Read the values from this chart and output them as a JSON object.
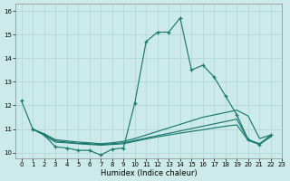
{
  "xlabel": "Humidex (Indice chaleur)",
  "background_color": "#cdeaea",
  "grid_color": "#aed4d4",
  "line_color": "#1a7a6e",
  "xlim": [
    -0.5,
    23
  ],
  "ylim": [
    9.75,
    16.3
  ],
  "yticks": [
    10,
    11,
    12,
    13,
    14,
    15,
    16
  ],
  "xticks": [
    0,
    1,
    2,
    3,
    4,
    5,
    6,
    7,
    8,
    9,
    10,
    11,
    12,
    13,
    14,
    15,
    16,
    17,
    18,
    19,
    20,
    21,
    22,
    23
  ],
  "line1": {
    "x": [
      0,
      1,
      2,
      3,
      4,
      5,
      6,
      7,
      8,
      9,
      10,
      11,
      12,
      13,
      14,
      15,
      16,
      17,
      18,
      19,
      20,
      21,
      22
    ],
    "y": [
      12.2,
      11.0,
      10.75,
      10.25,
      10.2,
      10.1,
      10.1,
      9.9,
      10.15,
      10.2,
      12.1,
      14.7,
      15.1,
      15.1,
      15.7,
      13.5,
      13.7,
      13.2,
      12.4,
      11.6,
      10.55,
      10.35,
      10.75
    ]
  },
  "line2": {
    "x": [
      1,
      2,
      3,
      4,
      5,
      6,
      7,
      8,
      9,
      10,
      11,
      12,
      13,
      14,
      15,
      16,
      17,
      18,
      19,
      20,
      21,
      22
    ],
    "y": [
      11.0,
      10.8,
      10.55,
      10.5,
      10.45,
      10.42,
      10.38,
      10.42,
      10.48,
      10.6,
      10.75,
      10.9,
      11.05,
      11.2,
      11.35,
      11.5,
      11.6,
      11.7,
      11.8,
      11.55,
      10.6,
      10.75
    ]
  },
  "line3": {
    "x": [
      1,
      2,
      3,
      4,
      5,
      6,
      7,
      8,
      9,
      10,
      11,
      12,
      13,
      14,
      15,
      16,
      17,
      18,
      19,
      20,
      21,
      22
    ],
    "y": [
      11.0,
      10.78,
      10.5,
      10.45,
      10.4,
      10.38,
      10.35,
      10.38,
      10.42,
      10.52,
      10.62,
      10.72,
      10.82,
      10.92,
      11.02,
      11.12,
      11.22,
      11.32,
      11.42,
      10.55,
      10.38,
      10.72
    ]
  },
  "line4": {
    "x": [
      1,
      2,
      3,
      4,
      5,
      6,
      7,
      8,
      9,
      10,
      11,
      12,
      13,
      14,
      15,
      16,
      17,
      18,
      19,
      20,
      21,
      22
    ],
    "y": [
      11.0,
      10.75,
      10.45,
      10.42,
      10.38,
      10.35,
      10.32,
      10.35,
      10.38,
      10.48,
      10.58,
      10.67,
      10.75,
      10.83,
      10.9,
      10.97,
      11.05,
      11.12,
      11.18,
      10.52,
      10.35,
      10.68
    ]
  }
}
